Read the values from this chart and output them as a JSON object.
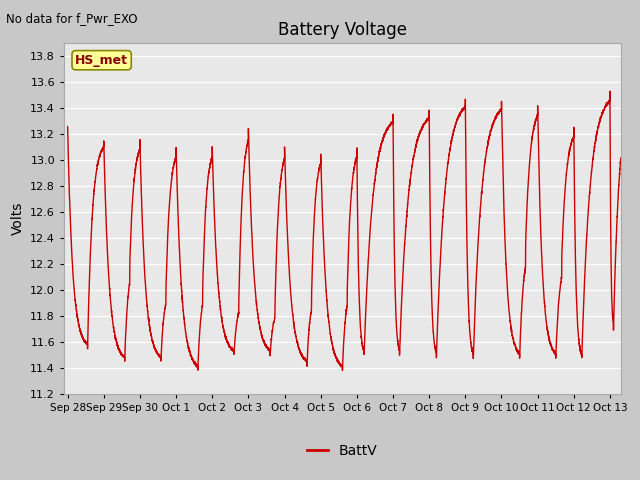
{
  "title": "Battery Voltage",
  "top_left_text": "No data for f_Pwr_EXO",
  "ylabel": "Volts",
  "legend_label": "BattV",
  "line_color": "#cc0000",
  "ylim": [
    11.2,
    13.9
  ],
  "yticks": [
    11.2,
    11.4,
    11.6,
    11.8,
    12.0,
    12.2,
    12.4,
    12.6,
    12.8,
    13.0,
    13.2,
    13.4,
    13.6,
    13.8
  ],
  "fig_bg_color": "#c8c8c8",
  "plot_bg_color": "#e8e8e8",
  "x_start_days": -0.1,
  "x_end_days": 15.3,
  "xtick_labels": [
    "Sep 28",
    "Sep 29",
    "Sep 30",
    "Oct 1",
    "Oct 2",
    "Oct 3",
    "Oct 4",
    "Oct 5",
    "Oct 6",
    "Oct 7",
    "Oct 8",
    "Oct 9",
    "Oct 10",
    "Oct 11",
    "Oct 12",
    "Oct 13"
  ],
  "xtick_positions": [
    0,
    1,
    2,
    3,
    4,
    5,
    6,
    7,
    8,
    9,
    10,
    11,
    12,
    13,
    14,
    15
  ],
  "legend_box_color": "#ffff99",
  "legend_box_edge": "#888800",
  "hs_met_label": "HS_met"
}
